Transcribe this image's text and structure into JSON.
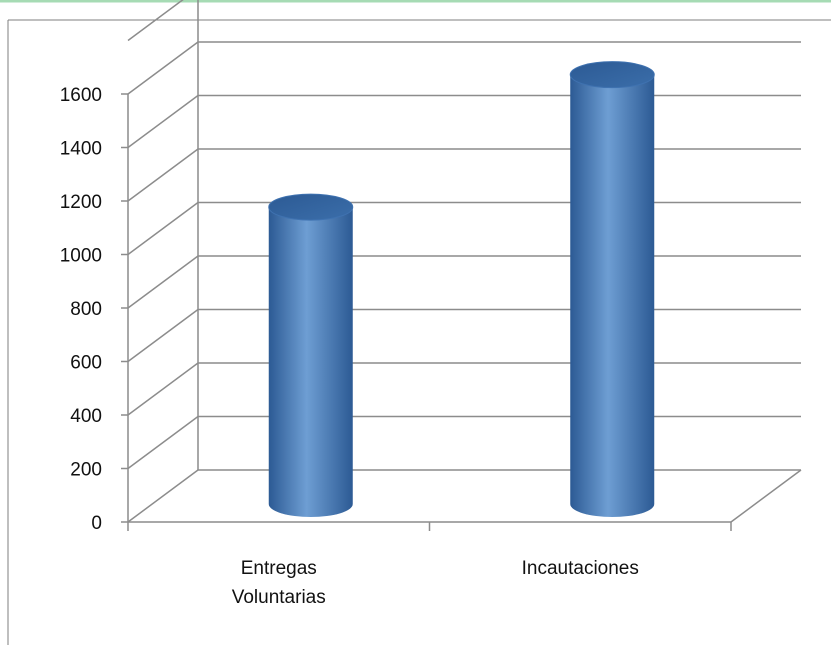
{
  "chart_data": {
    "type": "bar",
    "style": "3d-cylinder",
    "categories": [
      "Entregas Voluntarias",
      "Incautaciones"
    ],
    "category_lines": [
      [
        "Entregas",
        "Voluntarias"
      ],
      [
        "Incautaciones"
      ]
    ],
    "values": [
      1110,
      1605
    ],
    "y_ticks": [
      "0",
      "200",
      "400",
      "600",
      "800",
      "1000",
      "1200",
      "1400",
      "1600"
    ],
    "ylim": [
      0,
      1600
    ],
    "grid": true,
    "legend": "none",
    "colors": {
      "bar": "#4a7ebb",
      "bar_dark": "#2c5a94",
      "bar_light": "#6e9ed3",
      "grid": "#8c8c8c",
      "axis": "#8c8c8c",
      "frame": "#7f7f7f",
      "top_band": "#5fbf78"
    }
  }
}
